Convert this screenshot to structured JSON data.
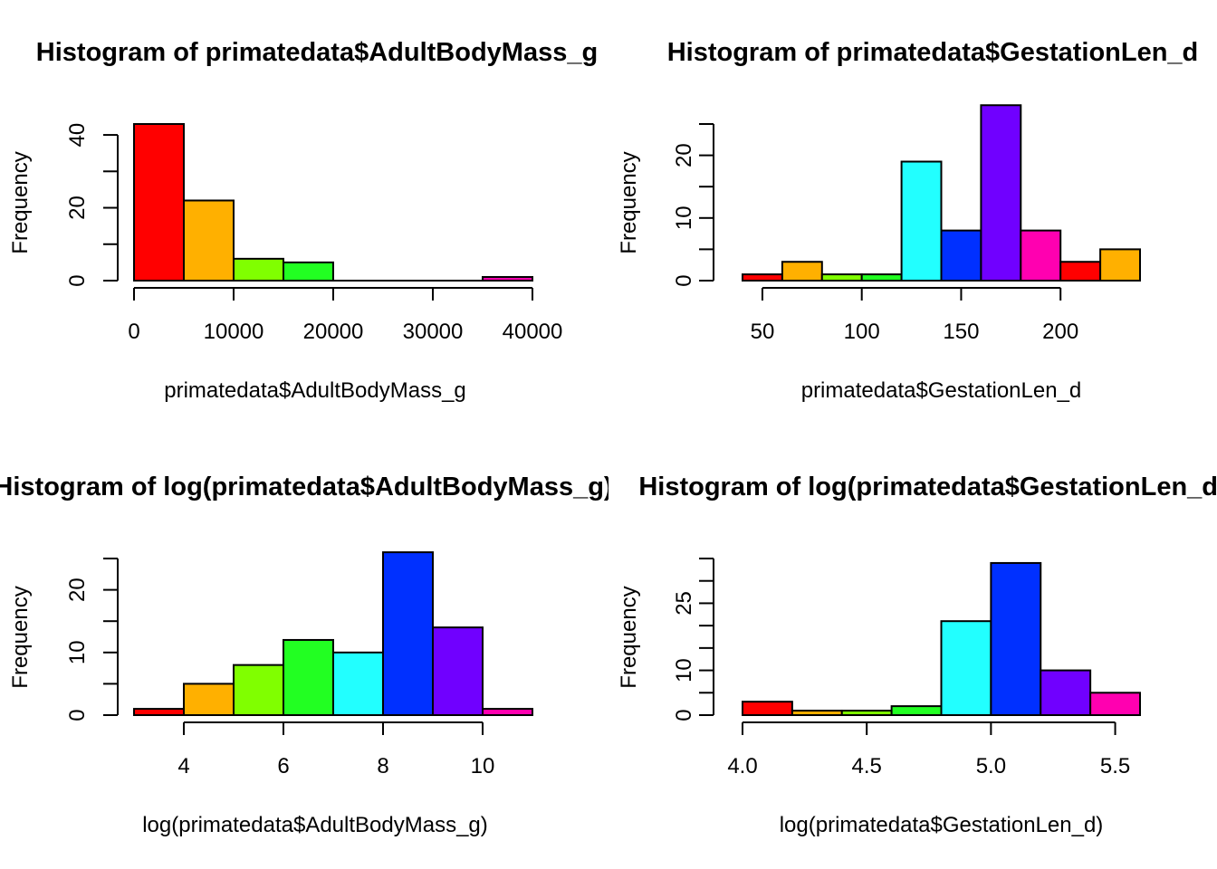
{
  "chart_data": [
    {
      "type": "bar",
      "title": "Histogram of primatedata$AdultBodyMass_g",
      "xlabel": "primatedata$AdultBodyMass_g",
      "ylabel": "Frequency",
      "xlim": [
        0,
        40000
      ],
      "ylim": [
        0,
        43
      ],
      "x_ticks": [
        "0",
        "10000",
        "20000",
        "30000",
        "40000"
      ],
      "y_ticks": [
        "0",
        "20",
        "40"
      ],
      "bins": [
        {
          "from": 0,
          "to": 5000,
          "count": 43,
          "color": "#FF0000"
        },
        {
          "from": 5000,
          "to": 10000,
          "count": 22,
          "color": "#FFB000"
        },
        {
          "from": 10000,
          "to": 15000,
          "count": 6,
          "color": "#80FF00"
        },
        {
          "from": 15000,
          "to": 20000,
          "count": 5,
          "color": "#22FF22"
        },
        {
          "from": 20000,
          "to": 25000,
          "count": 0,
          "color": "#00FF80"
        },
        {
          "from": 25000,
          "to": 30000,
          "count": 0,
          "color": "#00FFFF"
        },
        {
          "from": 30000,
          "to": 35000,
          "count": 0,
          "color": "#0030FF"
        },
        {
          "from": 35000,
          "to": 40000,
          "count": 1,
          "color": "#FF00B0"
        }
      ]
    },
    {
      "type": "bar",
      "title": "Histogram of primatedata$GestationLen_d",
      "xlabel": "primatedata$GestationLen_d",
      "ylabel": "Frequency",
      "xlim": [
        40,
        240
      ],
      "ylim": [
        0,
        25
      ],
      "x_ticks": [
        "50",
        "100",
        "150",
        "200"
      ],
      "y_ticks": [
        "0",
        "10",
        "20"
      ],
      "bins": [
        {
          "from": 40,
          "to": 60,
          "count": 1,
          "color": "#FF0000"
        },
        {
          "from": 60,
          "to": 80,
          "count": 3,
          "color": "#FFB000"
        },
        {
          "from": 80,
          "to": 100,
          "count": 1,
          "color": "#80FF00"
        },
        {
          "from": 100,
          "to": 120,
          "count": 1,
          "color": "#22FF22"
        },
        {
          "from": 120,
          "to": 140,
          "count": 19,
          "color": "#22FFFF"
        },
        {
          "from": 140,
          "to": 160,
          "count": 8,
          "color": "#0030FF"
        },
        {
          "from": 160,
          "to": 180,
          "count": 28,
          "color": "#7000FF"
        },
        {
          "from": 180,
          "to": 200,
          "count": 8,
          "color": "#FF00B0"
        },
        {
          "from": 200,
          "to": 220,
          "count": 3,
          "color": "#FF0000"
        },
        {
          "from": 220,
          "to": 240,
          "count": 5,
          "color": "#FFB000"
        }
      ]
    },
    {
      "type": "bar",
      "title": "Histogram of log(primatedata$AdultBodyMass_g)",
      "xlabel": "log(primatedata$AdultBodyMass_g)",
      "ylabel": "Frequency",
      "xlim": [
        3,
        11
      ],
      "ylim": [
        0,
        25
      ],
      "x_ticks": [
        "4",
        "6",
        "8",
        "10"
      ],
      "y_ticks": [
        "0",
        "10",
        "20"
      ],
      "bins": [
        {
          "from": 3,
          "to": 4,
          "count": 1,
          "color": "#FF0000"
        },
        {
          "from": 4,
          "to": 5,
          "count": 5,
          "color": "#FFB000"
        },
        {
          "from": 5,
          "to": 6,
          "count": 8,
          "color": "#80FF00"
        },
        {
          "from": 6,
          "to": 7,
          "count": 12,
          "color": "#22FF22"
        },
        {
          "from": 7,
          "to": 8,
          "count": 10,
          "color": "#22FFFF"
        },
        {
          "from": 8,
          "to": 9,
          "count": 26,
          "color": "#0030FF"
        },
        {
          "from": 9,
          "to": 10,
          "count": 14,
          "color": "#7000FF"
        },
        {
          "from": 10,
          "to": 11,
          "count": 1,
          "color": "#FF00B0"
        }
      ]
    },
    {
      "type": "bar",
      "title": "Histogram of log(primatedata$GestationLen_d)",
      "xlabel": "log(primatedata$GestationLen_d)",
      "ylabel": "Frequency",
      "xlim": [
        4.0,
        5.6
      ],
      "ylim": [
        0,
        35
      ],
      "x_ticks": [
        "4.0",
        "4.5",
        "5.0",
        "5.5"
      ],
      "y_ticks": [
        "0",
        "10",
        "25"
      ],
      "bins": [
        {
          "from": 4.0,
          "to": 4.2,
          "count": 3,
          "color": "#FF0000"
        },
        {
          "from": 4.2,
          "to": 4.4,
          "count": 1,
          "color": "#FFB000"
        },
        {
          "from": 4.4,
          "to": 4.6,
          "count": 1,
          "color": "#80FF00"
        },
        {
          "from": 4.6,
          "to": 4.8,
          "count": 2,
          "color": "#22FF22"
        },
        {
          "from": 4.8,
          "to": 5.0,
          "count": 21,
          "color": "#22FFFF"
        },
        {
          "from": 5.0,
          "to": 5.2,
          "count": 34,
          "color": "#0030FF"
        },
        {
          "from": 5.2,
          "to": 5.4,
          "count": 10,
          "color": "#7000FF"
        },
        {
          "from": 5.4,
          "to": 5.6,
          "count": 5,
          "color": "#FF00B0"
        }
      ]
    }
  ]
}
